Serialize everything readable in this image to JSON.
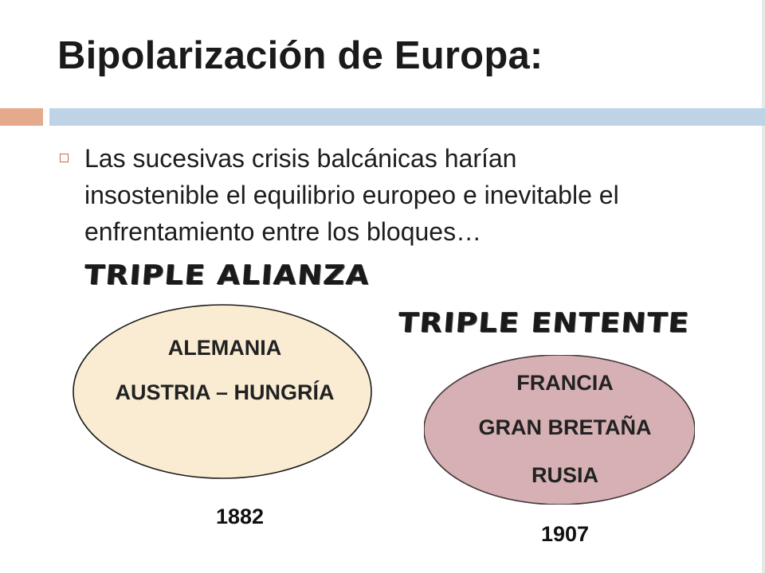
{
  "title": "Bipolarización de Europa:",
  "bullet": {
    "line1": "Las sucesivas crisis balcánicas harían",
    "line2": "insostenible el equilibrio europeo e inevitable el",
    "line3": "enfrentamiento entre los bloques…"
  },
  "blocs": {
    "alianza": {
      "label": "TRIPLE  ALIANZA",
      "members": [
        "ALEMANIA",
        "AUSTRIA – HUNGRÍA"
      ],
      "year": "1882",
      "fill": "#f9ecd2"
    },
    "entente": {
      "label": "TRIPLE  ENTENTE",
      "members": [
        "FRANCIA",
        "GRAN BRETAÑA",
        "RUSIA"
      ],
      "year": "1907",
      "fill": "#d8b2b5"
    }
  },
  "colors": {
    "accent_bar": "#e5a98c",
    "main_bar": "#bfd3e6",
    "bullet_border": "#c46b4a"
  }
}
